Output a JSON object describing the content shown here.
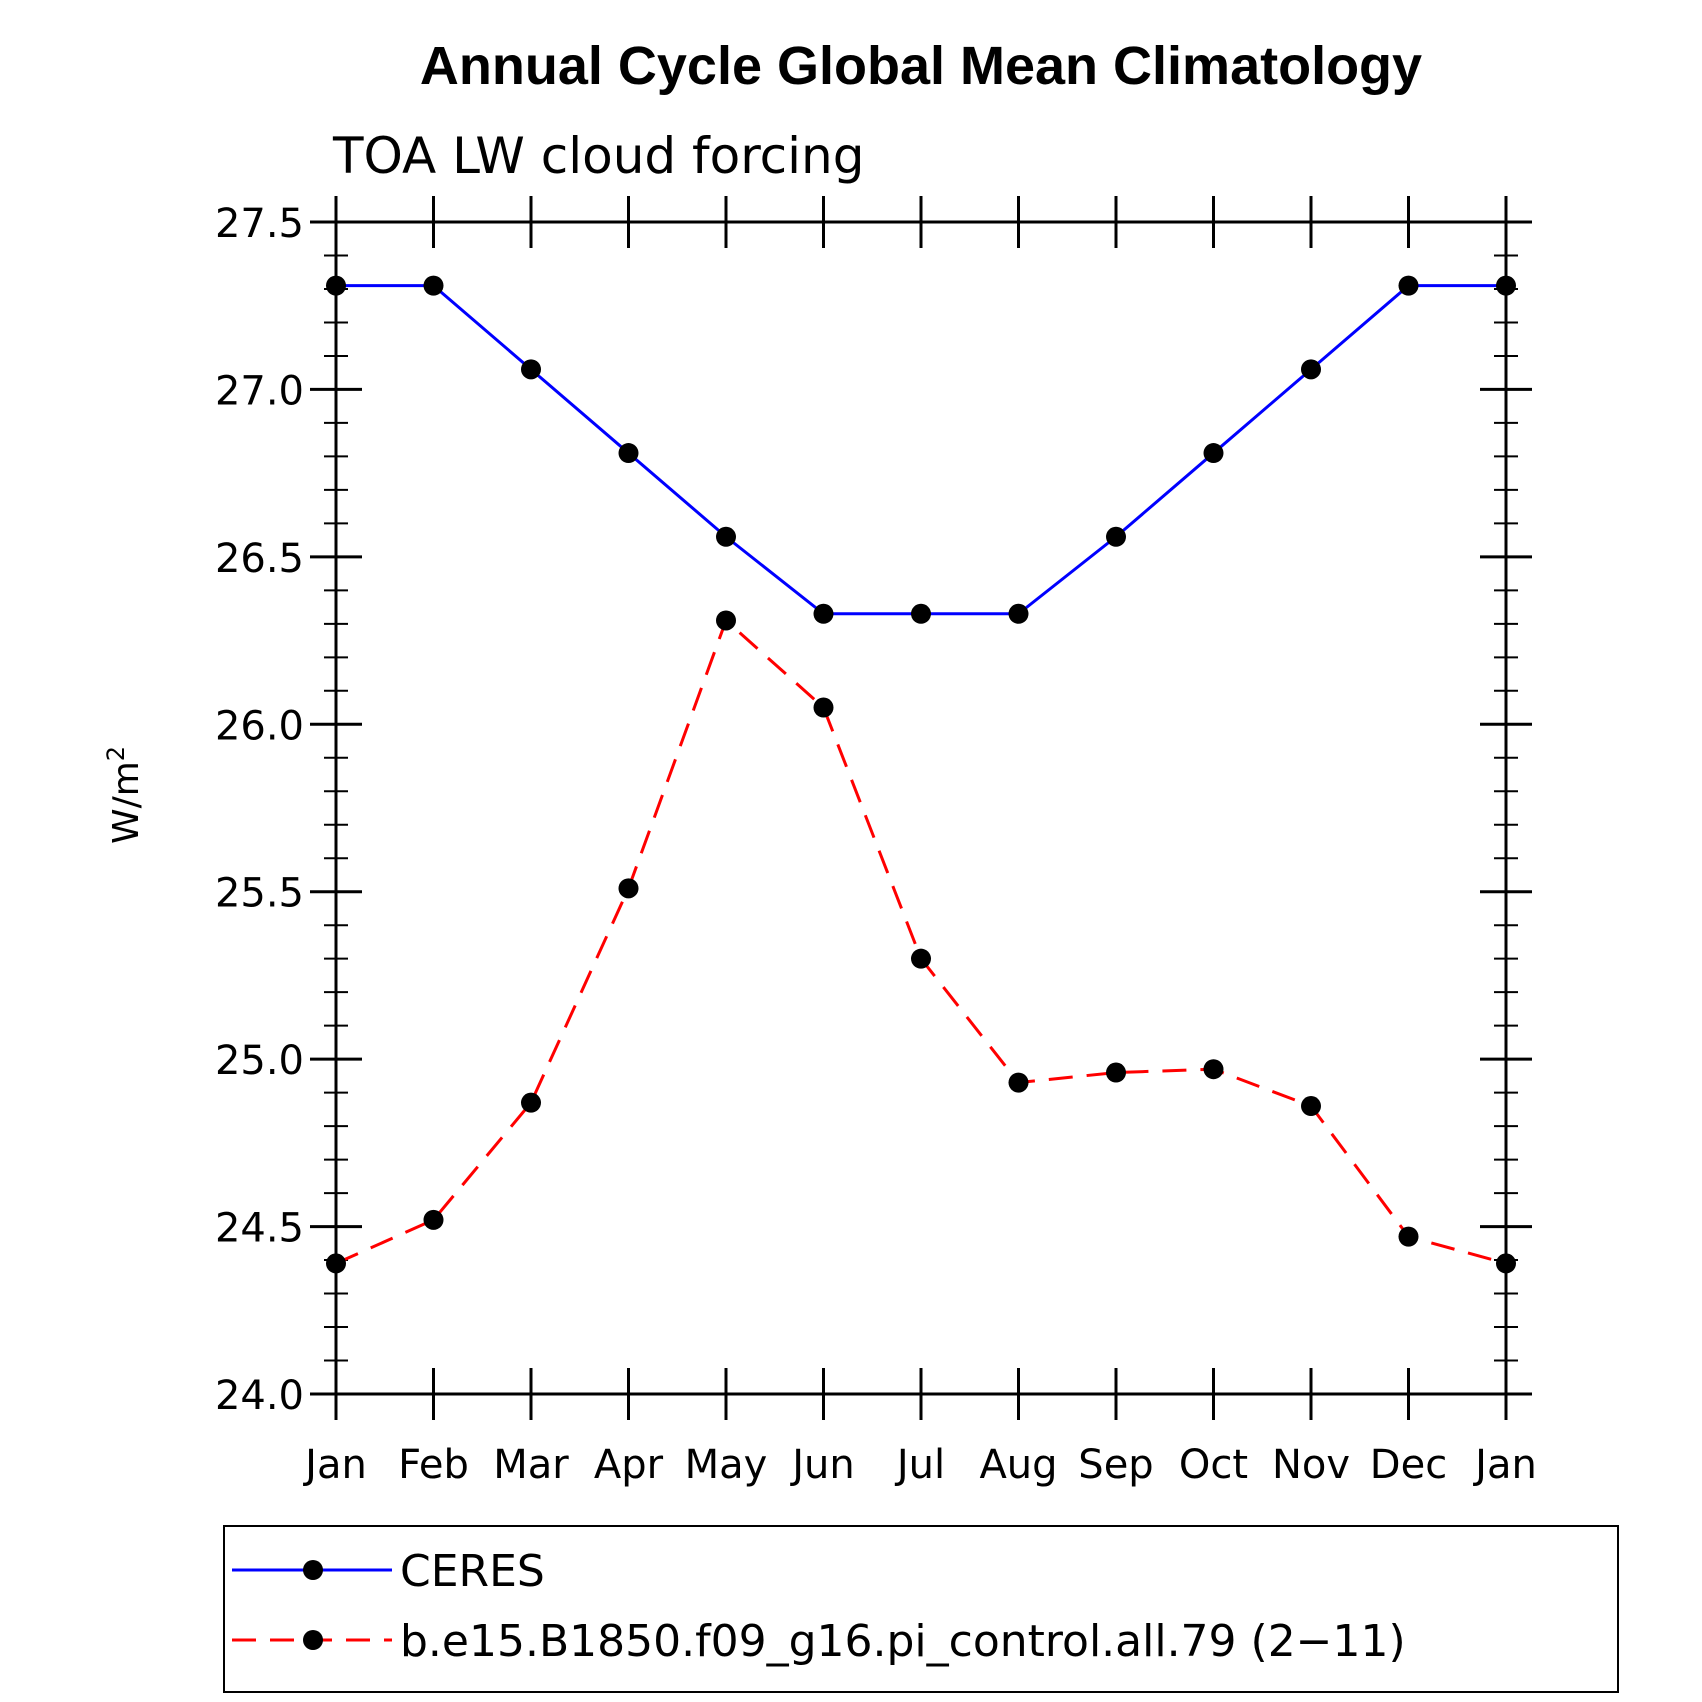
{
  "chart_data": {
    "type": "line",
    "title": "Annual Cycle Global Mean Climatology",
    "subtitle": "TOA LW cloud forcing",
    "ylabel": "W/m",
    "ylabel_superscript": "2",
    "xlabel": "",
    "categories": [
      "Jan",
      "Feb",
      "Mar",
      "Apr",
      "May",
      "Jun",
      "Jul",
      "Aug",
      "Sep",
      "Oct",
      "Nov",
      "Dec",
      "Jan"
    ],
    "ylim": [
      24.0,
      27.5
    ],
    "yticks": [
      "24.0",
      "24.5",
      "25.0",
      "25.5",
      "26.0",
      "26.5",
      "27.0",
      "27.5"
    ],
    "grid": false,
    "legend_position": "bottom",
    "series": [
      {
        "name": "CERES",
        "color": "#0000ff",
        "line_style": "solid",
        "marker": "filled-circle",
        "values": [
          27.31,
          27.31,
          27.06,
          26.81,
          26.56,
          26.33,
          26.33,
          26.33,
          26.56,
          26.81,
          27.06,
          27.31,
          27.31
        ]
      },
      {
        "name": "b.e15.B1850.f09_g16.pi_control.all.79 (2−11)",
        "color": "#ff0000",
        "line_style": "dashed",
        "marker": "filled-circle",
        "values": [
          24.39,
          24.52,
          24.87,
          25.51,
          26.31,
          26.05,
          25.3,
          24.93,
          24.96,
          24.97,
          24.86,
          24.47,
          24.39
        ]
      }
    ]
  }
}
